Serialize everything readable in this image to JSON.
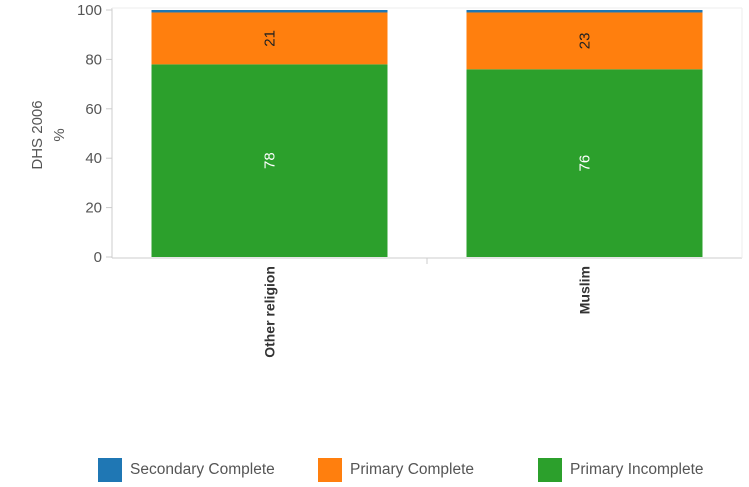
{
  "chart_data": {
    "type": "bar",
    "stacked": true,
    "orientation": "vertical",
    "survey_label": "DHS 2006",
    "ylabel": "%",
    "ylim": [
      0,
      100
    ],
    "yticks": [
      "0",
      "20",
      "40",
      "60",
      "80",
      "100"
    ],
    "categories": [
      "Other religion",
      "Muslim"
    ],
    "series": [
      {
        "name": "Primary Incomplete",
        "color": "#2ca02c",
        "values": [
          78,
          76
        ],
        "labels": [
          "78",
          "76"
        ],
        "label_color": "#ffffff"
      },
      {
        "name": "Primary Complete",
        "color": "#ff7f0e",
        "values": [
          21,
          23
        ],
        "labels": [
          "21",
          "23"
        ],
        "label_color": "#222222"
      },
      {
        "name": "Secondary Complete",
        "color": "#1f77b4",
        "values": [
          1,
          1
        ],
        "labels": [
          "",
          ""
        ],
        "label_color": "#ffffff"
      }
    ],
    "legend": {
      "position": "bottom",
      "items": [
        "Secondary Complete",
        "Primary Complete",
        "Primary Incomplete"
      ]
    },
    "grid": false
  }
}
